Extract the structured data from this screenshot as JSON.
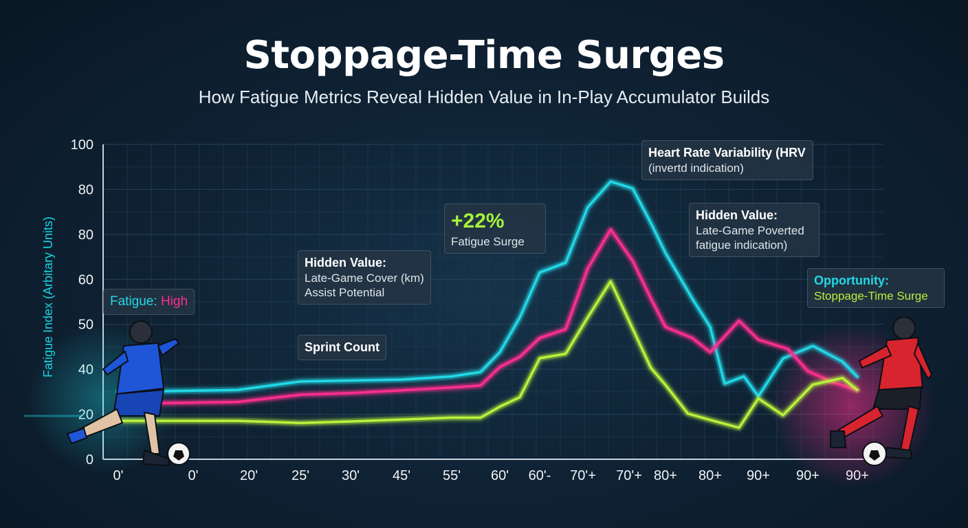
{
  "header": {
    "title": "Stoppage-Time Surges",
    "subtitle": "How Fatigue Metrics Reveal Hidden Value in In-Play Accumulator Builds"
  },
  "colors": {
    "cyan": "#22d8e6",
    "pink": "#ff2e8f",
    "lime": "#b8f23a",
    "background": "#0f2335"
  },
  "callouts": {
    "fatigue_label": "Fatigue:",
    "fatigue_value": "High",
    "surge_value": "+22%",
    "surge_text": "Fatigue Surge",
    "hidden_left_title": "Hidden Value:",
    "hidden_left_line1": "Late-Game Cover (km)",
    "hidden_left_line2": "Assist Potential",
    "sprint": "Sprint Count",
    "hrv_title": "Heart Rate Variability (HRV",
    "hrv_line": "(invertd indication)",
    "hidden_right_title": "Hidden Value:",
    "hidden_right_line1": "Late-Game Poverted",
    "hidden_right_line2": "fatigue indication)",
    "opportunity_title": "Opportunity:",
    "opportunity_line": "Stoppage-Time Surge"
  },
  "illustrations": {
    "left_player": "footballer-blue-kit-running",
    "right_player": "footballer-red-kit-running",
    "ball": "soccer-ball-icon"
  },
  "chart_data": {
    "type": "line",
    "title": "Stoppage-Time Surges",
    "subtitle": "How Fatigue Metrics Reveal Hidden Value in In-Play Accumulator Builds",
    "ylabel": "Fatigue Index (Arbitary Units)",
    "xlabel": "",
    "y_tick_labels": [
      "100",
      "80",
      "80",
      "60",
      "50",
      "40",
      "20",
      "0"
    ],
    "x_tick_labels": [
      "0'",
      "0'",
      "20'",
      "25'",
      "30'",
      "45'",
      "55'",
      "60'",
      "60'-",
      "70'+",
      "70'+",
      "80+",
      "80+",
      "90+",
      "90+",
      "90+"
    ],
    "ylim": [
      0,
      100
    ],
    "grid": true,
    "legend": "none",
    "series": [
      {
        "color": "#22d8e6",
        "x": [
          0,
          1.8,
          3,
          4,
          5,
          6,
          6.6,
          7,
          7.5,
          8,
          8.6,
          9.1,
          9.6,
          10.1,
          10.6,
          11,
          11.6,
          12,
          12.3,
          12.7,
          13,
          13.5,
          14.1,
          14.7,
          15
        ],
        "y": [
          21.4,
          22.0,
          24.7,
          25.0,
          25.3,
          26.3,
          27.7,
          34.0,
          45.0,
          59.3,
          62.4,
          80.0,
          88.2,
          86.0,
          75.0,
          65.5,
          51.0,
          42.0,
          24.0,
          26.3,
          20.0,
          32.0,
          36.0,
          31.0,
          26.2
        ]
      },
      {
        "color": "#ff2e8f",
        "x": [
          0,
          1.8,
          3,
          4,
          5,
          6,
          6.6,
          7,
          7.5,
          8,
          8.6,
          9.1,
          9.6,
          10.1,
          10.6,
          11,
          11.6,
          12,
          12.6,
          13,
          13.3,
          13.6,
          14,
          14.5,
          15
        ],
        "y": [
          17.6,
          18.2,
          20.5,
          21.0,
          21.9,
          22.8,
          23.4,
          29.3,
          32.5,
          38.5,
          41.3,
          60.5,
          73.0,
          63.0,
          51.0,
          42.0,
          38.5,
          34.0,
          44.0,
          38.0,
          36.5,
          35.0,
          28.0,
          24.5,
          22.0
        ]
      },
      {
        "color": "#b8f23a",
        "x": [
          0,
          1.8,
          3,
          4,
          5,
          6,
          6.6,
          7,
          7.5,
          8,
          8.6,
          9.1,
          9.6,
          10.1,
          10.6,
          11,
          11.5,
          12,
          12.6,
          13,
          13.5,
          14.1,
          14.7,
          15
        ],
        "y": [
          12.2,
          12.2,
          11.5,
          12.0,
          12.6,
          13.2,
          13.2,
          16.7,
          19.7,
          32.1,
          33.5,
          45.0,
          56.5,
          41.4,
          29.0,
          23.6,
          14.5,
          12.5,
          10.0,
          19.3,
          14.0,
          23.7,
          25.8,
          22.0
        ]
      }
    ]
  }
}
